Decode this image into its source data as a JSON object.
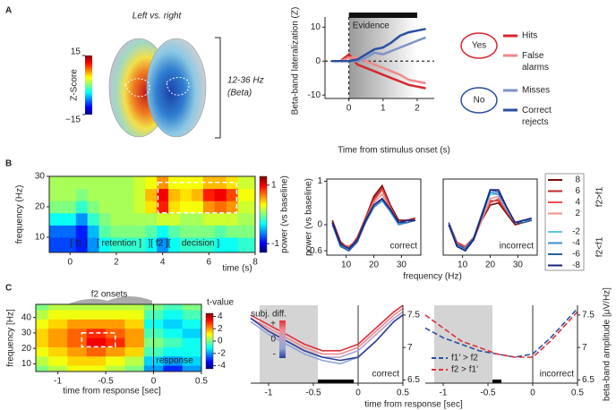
{
  "panels": [
    "A",
    "B",
    "C"
  ],
  "chart_data": [
    {
      "type": "brain-map",
      "title": "Left vs. right",
      "annotation": [
        "12-36 Hz",
        "(Beta)"
      ],
      "colorbar": {
        "label": "Z-Score",
        "lim": [
          -15,
          15
        ],
        "ticks": [
          15,
          {
            "value": -15,
            "label": "−15"
          }
        ]
      }
    },
    {
      "type": "line",
      "ylabel": "Beta-band lateralization (Z)",
      "xlabel": "Time from stimulus onset (s)",
      "xlim": [
        -0.7,
        2.5
      ],
      "ylim": [
        -11,
        13
      ],
      "xticks": [
        0,
        1,
        2
      ],
      "yticks": [
        -10,
        0,
        10
      ],
      "band": {
        "label": "Evidence",
        "x": [
          0,
          2
        ]
      },
      "legend_groups": [
        {
          "label": "Yes",
          "color": "#d7262b"
        },
        {
          "label": "No",
          "color": "#2a4fa0"
        }
      ],
      "x": [
        -0.5,
        -0.25,
        0,
        0.25,
        0.5,
        0.75,
        1,
        1.25,
        1.5,
        1.75,
        2,
        2.25
      ],
      "series": [
        {
          "name": "Hits",
          "color": "#d7262b",
          "values": [
            0,
            0,
            2,
            -1,
            -2,
            -3,
            -4,
            -5,
            -6,
            -7,
            -7.5,
            -8
          ]
        },
        {
          "name": "False alarms",
          "color": "#f08a8a",
          "values": [
            0,
            0,
            1,
            1,
            0,
            -1,
            -2,
            -3,
            -4,
            -5.5,
            -6,
            -6.5
          ]
        },
        {
          "name": "Misses",
          "color": "#7f93c9",
          "values": [
            0,
            0,
            0,
            0,
            1,
            2.5,
            2,
            3,
            4,
            5,
            6,
            7
          ]
        },
        {
          "name": "Correct rejects",
          "color": "#2a4fa0",
          "values": [
            0,
            0,
            0,
            0.5,
            2,
            3.5,
            4,
            5.5,
            7.5,
            8.5,
            9,
            9.5
          ]
        }
      ]
    },
    {
      "type": "heatmap",
      "xlabel": "time (s)",
      "ylabel": "frequency (Hz)",
      "xlim": [
        -0.9,
        8
      ],
      "ylim": [
        5,
        30
      ],
      "xticks": [
        0,
        2,
        4,
        6,
        8
      ],
      "yticks": [
        10,
        20,
        30
      ],
      "annotations": [
        "[ f1 ]",
        "[ retention ]",
        "][ f2 ][",
        "decision ]"
      ],
      "highlight": {
        "x": [
          3.8,
          7.2
        ],
        "y": [
          18,
          28
        ]
      },
      "colorbar": {
        "label": "power (vs baseline)",
        "lim": [
          -1.3,
          1.3
        ],
        "ticks": [
          1,
          -1
        ]
      },
      "x": [
        0,
        0.5,
        1,
        1.5,
        2,
        2.5,
        3,
        3.5,
        4,
        4.5,
        5,
        5.5,
        6,
        6.5,
        7,
        7.5
      ],
      "y": [
        8,
        12,
        16,
        20,
        24,
        28
      ],
      "z": [
        [
          -0.8,
          -0.9,
          -0.6,
          -0.3,
          -0.2,
          -0.2,
          -0.2,
          -0.3,
          -0.6,
          -0.3,
          -0.2,
          -0.2,
          -0.2,
          -0.3,
          -0.3,
          -0.2
        ],
        [
          -0.7,
          -0.9,
          -0.5,
          -0.1,
          0,
          0,
          0,
          -0.1,
          -0.3,
          -0.1,
          0,
          0,
          0,
          -0.1,
          0,
          0
        ],
        [
          -0.3,
          -0.6,
          -0.2,
          0,
          0.1,
          0.1,
          0.1,
          0.1,
          0.2,
          0.2,
          0.1,
          0.1,
          0.2,
          0.2,
          0.2,
          0.1
        ],
        [
          0,
          -0.2,
          0,
          0.1,
          0.1,
          0.1,
          0.2,
          0.4,
          0.9,
          0.4,
          0.3,
          0.3,
          0.6,
          0.7,
          0.6,
          0.2
        ],
        [
          0.1,
          0,
          0.1,
          0.1,
          0.1,
          0.1,
          0.2,
          0.5,
          1,
          0.5,
          0.4,
          0.5,
          0.9,
          1,
          0.8,
          0.3
        ],
        [
          0.1,
          0.1,
          0.1,
          0.1,
          0.1,
          0.1,
          0.2,
          0.3,
          0.6,
          0.3,
          0.3,
          0.3,
          0.5,
          0.5,
          0.4,
          0.2
        ]
      ]
    },
    {
      "type": "line",
      "label": "correct",
      "xlabel": "frequency (Hz)",
      "ylabel": "power (vs baseline)",
      "xlim": [
        3,
        37
      ],
      "ylim": [
        -0.7,
        1.05
      ],
      "xticks": [
        10,
        20,
        30
      ],
      "yticks": [
        -0.6,
        0,
        1
      ],
      "x": [
        5,
        8,
        11,
        14,
        17,
        20,
        23,
        26,
        29,
        32,
        35
      ],
      "series": [
        {
          "color": "#7a0c0c",
          "values": [
            0.1,
            -0.4,
            -0.55,
            -0.3,
            0.15,
            0.65,
            0.9,
            0.45,
            0.1,
            0.1,
            0.15
          ]
        },
        {
          "color": "#c0282b",
          "values": [
            0.05,
            -0.45,
            -0.55,
            -0.3,
            0.15,
            0.6,
            0.85,
            0.4,
            0.05,
            0.1,
            0.15
          ]
        },
        {
          "color": "#e8534f",
          "values": [
            0.05,
            -0.45,
            -0.5,
            -0.35,
            0.1,
            0.55,
            0.8,
            0.4,
            0.05,
            0.1,
            0.1
          ]
        },
        {
          "color": "#f08f8a",
          "values": [
            0,
            -0.45,
            -0.55,
            -0.35,
            0.1,
            0.5,
            0.7,
            0.35,
            0.05,
            0.05,
            0.1
          ]
        },
        {
          "color": "#5cc8e8",
          "values": [
            0,
            -0.5,
            -0.55,
            -0.35,
            0.05,
            0.4,
            0.6,
            0.3,
            0,
            0.05,
            0.1
          ]
        },
        {
          "color": "#3a8fd0",
          "values": [
            0,
            -0.5,
            -0.6,
            -0.35,
            0.05,
            0.4,
            0.55,
            0.3,
            0,
            0.05,
            0.1
          ]
        },
        {
          "color": "#2a5fa8",
          "values": [
            0.05,
            -0.5,
            -0.6,
            -0.4,
            0.05,
            0.45,
            0.6,
            0.35,
            0.05,
            0.05,
            0.1
          ]
        },
        {
          "color": "#1a237e",
          "values": [
            0.05,
            -0.45,
            -0.55,
            -0.35,
            0.1,
            0.45,
            0.6,
            0.35,
            0.05,
            0.1,
            0.1
          ]
        }
      ]
    },
    {
      "type": "line",
      "label": "incorrect",
      "legend_groups": [
        "f2>f1",
        "f2<f1"
      ],
      "xlim": [
        3,
        37
      ],
      "ylim": [
        -0.7,
        1.05
      ],
      "xticks": [
        10,
        20,
        30
      ],
      "x": [
        5,
        8,
        11,
        14,
        17,
        20,
        23,
        26,
        29,
        32,
        35
      ],
      "series": [
        {
          "name": "8",
          "color": "#7a0c0c",
          "values": [
            0,
            -0.4,
            -0.5,
            -0.3,
            0.1,
            0.45,
            0.5,
            0.25,
            0,
            0.05,
            0.1
          ]
        },
        {
          "name": "6",
          "color": "#c0282b",
          "values": [
            0,
            -0.45,
            -0.5,
            -0.3,
            0.15,
            0.55,
            0.55,
            0.3,
            0.05,
            0.05,
            0.1
          ]
        },
        {
          "name": "4",
          "color": "#e8534f",
          "values": [
            0.05,
            -0.4,
            -0.5,
            -0.3,
            0.15,
            0.5,
            0.6,
            0.3,
            0.05,
            0.1,
            0.1
          ]
        },
        {
          "name": "2",
          "color": "#f08f8a",
          "values": [
            0,
            -0.45,
            -0.55,
            -0.35,
            0.1,
            0.6,
            0.65,
            0.35,
            0.05,
            0.05,
            0.1
          ]
        },
        {
          "name": "-2",
          "color": "#5cc8e8",
          "values": [
            0,
            -0.5,
            -0.55,
            -0.3,
            0.2,
            0.7,
            0.7,
            0.35,
            0.05,
            0.05,
            0.1
          ]
        },
        {
          "name": "-4",
          "color": "#3a8fd0",
          "values": [
            0,
            -0.5,
            -0.6,
            -0.3,
            0.2,
            0.75,
            0.7,
            0.4,
            0.05,
            0.1,
            0.1
          ]
        },
        {
          "name": "-6",
          "color": "#2a5fa8",
          "values": [
            0.05,
            -0.45,
            -0.55,
            -0.3,
            0.25,
            0.8,
            0.75,
            0.4,
            0.05,
            0.05,
            0.1
          ]
        },
        {
          "name": "-8",
          "color": "#1a237e",
          "values": [
            0,
            -0.5,
            -0.6,
            -0.35,
            0.2,
            0.8,
            0.8,
            0.4,
            0.05,
            0.1,
            0.15
          ]
        }
      ]
    },
    {
      "type": "heatmap",
      "xlabel": "time from response [sec]",
      "ylabel": "frequency [Hz]",
      "xlim": [
        -1.23,
        0.5
      ],
      "ylim": [
        5,
        48.5
      ],
      "xticks": [
        -1,
        -0.5,
        0,
        0.5
      ],
      "yticks": [
        10,
        20,
        30,
        40
      ],
      "annotations": [
        "f2 onsets",
        "response"
      ],
      "highlight": {
        "x": [
          -0.75,
          -0.4
        ],
        "y": [
          21,
          30
        ]
      },
      "colorbar": {
        "label": "t-value",
        "lim": [
          -4.5,
          4.5
        ],
        "ticks": [
          4,
          2,
          0,
          -2,
          -4
        ]
      },
      "x": [
        -1.2,
        -1,
        -0.8,
        -0.6,
        -0.4,
        -0.2,
        0,
        0.2,
        0.4
      ],
      "y": [
        6,
        12,
        18,
        24,
        30,
        36,
        42,
        48
      ],
      "z": [
        [
          0,
          0.5,
          1,
          1,
          0.5,
          0,
          -2,
          -3,
          -2
        ],
        [
          0.5,
          1,
          1.5,
          1.5,
          1,
          0.5,
          -1.5,
          -2,
          -1.5
        ],
        [
          1,
          1.5,
          2,
          2.5,
          2,
          1.5,
          -0.5,
          -1,
          -1
        ],
        [
          1.5,
          2,
          2.5,
          3.5,
          3,
          2,
          0,
          -0.5,
          -1
        ],
        [
          1.5,
          2,
          2.5,
          3,
          2.5,
          2,
          -0.5,
          -1,
          -1.5
        ],
        [
          1,
          1.5,
          2,
          2,
          2,
          1.5,
          -1,
          -1.5,
          -1
        ],
        [
          0.5,
          1,
          1,
          1,
          1,
          1,
          -0.5,
          -1,
          -0.5
        ],
        [
          0,
          0.5,
          0.5,
          0.5,
          0.5,
          0.5,
          0,
          -0.5,
          0
        ]
      ]
    },
    {
      "type": "line",
      "label": "correct",
      "xlabel": "time from response [sec]",
      "xlim": [
        -1.2,
        0.5
      ],
      "ylim": [
        6.45,
        7.65
      ],
      "xticks": [
        -1,
        -0.5,
        0,
        0.5
      ],
      "yticks": [
        6.5,
        7,
        7.5
      ],
      "shade": [
        -1.1,
        -0.45
      ],
      "sig": [
        -0.45,
        -0.05
      ],
      "colorbar": {
        "title": "subj. diff.",
        "labels": [
          "+",
          "0",
          "-"
        ]
      },
      "x": [
        -1.2,
        -1,
        -0.8,
        -0.6,
        -0.4,
        -0.2,
        0,
        0.2,
        0.4,
        0.5
      ],
      "series": [
        {
          "color": "#e0303a",
          "values": [
            7.5,
            7.35,
            7.2,
            7.05,
            6.95,
            6.95,
            7.05,
            7.3,
            7.55,
            7.65
          ]
        },
        {
          "color": "#f08a8f",
          "values": [
            7.45,
            7.3,
            7.15,
            7,
            6.9,
            6.9,
            7,
            7.25,
            7.5,
            7.6
          ]
        },
        {
          "color": "#b7a3c9",
          "values": [
            7.45,
            7.25,
            7.1,
            6.95,
            6.85,
            6.85,
            6.95,
            7.2,
            7.45,
            7.55
          ]
        },
        {
          "color": "#8fa3d6",
          "values": [
            7.4,
            7.2,
            7.05,
            6.9,
            6.8,
            6.75,
            6.85,
            7.1,
            7.4,
            7.5
          ]
        },
        {
          "color": "#2b3f9e",
          "values": [
            7.45,
            7.25,
            7.1,
            6.95,
            6.85,
            6.8,
            6.85,
            7.1,
            7.4,
            7.5
          ]
        }
      ]
    },
    {
      "type": "line",
      "label": "incorrect",
      "ylabel": "beta-band amplitude [μV/Hz]",
      "xlim": [
        -1.2,
        0.5
      ],
      "ylim": [
        6.45,
        7.65
      ],
      "xticks": [
        -1,
        -0.5,
        0,
        0.5
      ],
      "yticks": [
        6.5,
        7,
        7.5
      ],
      "shade": [
        -1.1,
        -0.45
      ],
      "sig": [
        -0.45,
        -0.35
      ],
      "x": [
        -1.2,
        -1,
        -0.8,
        -0.6,
        -0.4,
        -0.2,
        0,
        0.2,
        0.4,
        0.5
      ],
      "series": [
        {
          "name": "f1' > f2",
          "color": "#2b4fa0",
          "linestyle": "dashed",
          "values": [
            7.3,
            7.15,
            7.05,
            6.95,
            6.9,
            6.85,
            6.9,
            7.15,
            7.45,
            7.6
          ]
        },
        {
          "name": "f2 > f1'",
          "color": "#e0303a",
          "linestyle": "dashed",
          "values": [
            7.5,
            7.3,
            7.1,
            7,
            6.9,
            6.85,
            6.85,
            7.1,
            7.4,
            7.55
          ]
        }
      ]
    }
  ]
}
